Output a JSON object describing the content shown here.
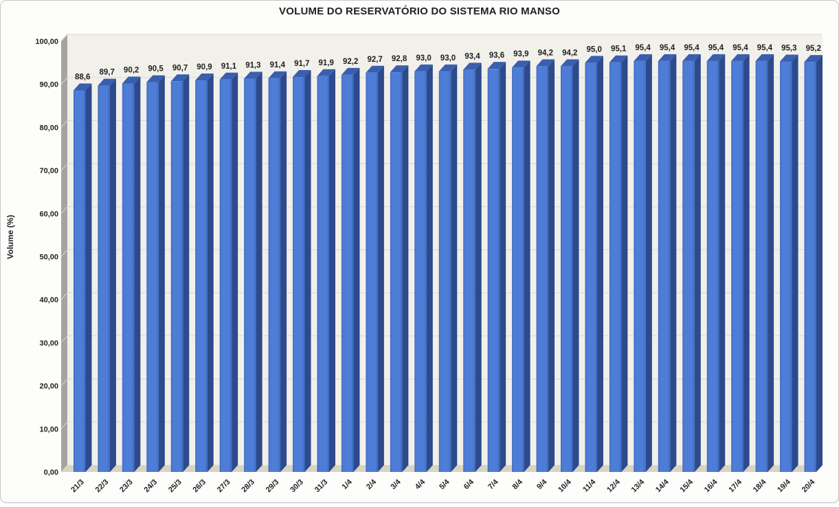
{
  "chart_data": {
    "type": "bar",
    "style": "3d-column",
    "title": "VOLUME DO RESERVATÓRIO DO SISTEMA RIO MANSO",
    "xlabel": "",
    "ylabel": "Volume (%)",
    "ylim": [
      0,
      100
    ],
    "grid": true,
    "legend_position": "none",
    "categories": [
      "21/3",
      "22/3",
      "23/3",
      "24/3",
      "25/3",
      "26/3",
      "27/3",
      "28/3",
      "29/3",
      "30/3",
      "31/3",
      "1/4",
      "2/4",
      "3/4",
      "4/4",
      "5/4",
      "6/4",
      "7/4",
      "8/4",
      "9/4",
      "10/4",
      "11/4",
      "12/4",
      "13/4",
      "14/4",
      "15/4",
      "16/4",
      "17/4",
      "18/4",
      "19/4",
      "20/4"
    ],
    "values": [
      88.6,
      89.7,
      90.2,
      90.5,
      90.7,
      90.9,
      91.1,
      91.3,
      91.4,
      91.7,
      91.9,
      92.2,
      92.7,
      92.8,
      93.0,
      93.0,
      93.4,
      93.6,
      93.9,
      94.2,
      94.2,
      95.0,
      95.1,
      95.4,
      95.4,
      95.4,
      95.4,
      95.4,
      95.4,
      95.3,
      95.2
    ],
    "value_labels": [
      "88,6",
      "89,7",
      "90,2",
      "90,5",
      "90,7",
      "90,9",
      "91,1",
      "91,3",
      "91,4",
      "91,7",
      "91,9",
      "92,2",
      "92,7",
      "92,8",
      "93,0",
      "93,0",
      "93,4",
      "93,6",
      "93,9",
      "94,2",
      "94,2",
      "95,0",
      "95,1",
      "95,4",
      "95,4",
      "95,4",
      "95,4",
      "95,4",
      "95,4",
      "95,3",
      "95,2"
    ],
    "y_ticks": [
      "0,00",
      "10,00",
      "20,00",
      "30,00",
      "40,00",
      "50,00",
      "60,00",
      "70,00",
      "80,00",
      "90,00",
      "100,00"
    ],
    "colors": {
      "bar_front": "#4e7dd7",
      "bar_front_edge": "#3b66be",
      "bar_side": "#2c4a8c",
      "bar_top": "#3a5fae",
      "back_wall": "#f2f0ea",
      "side_wall": "#a6a49e",
      "side_wall_line": "#cdcbc5",
      "floor": "#d8d4c1",
      "gridline": "#dddbd4",
      "text": "#1f1f1f",
      "frame_border": "#c6c6c6"
    }
  }
}
